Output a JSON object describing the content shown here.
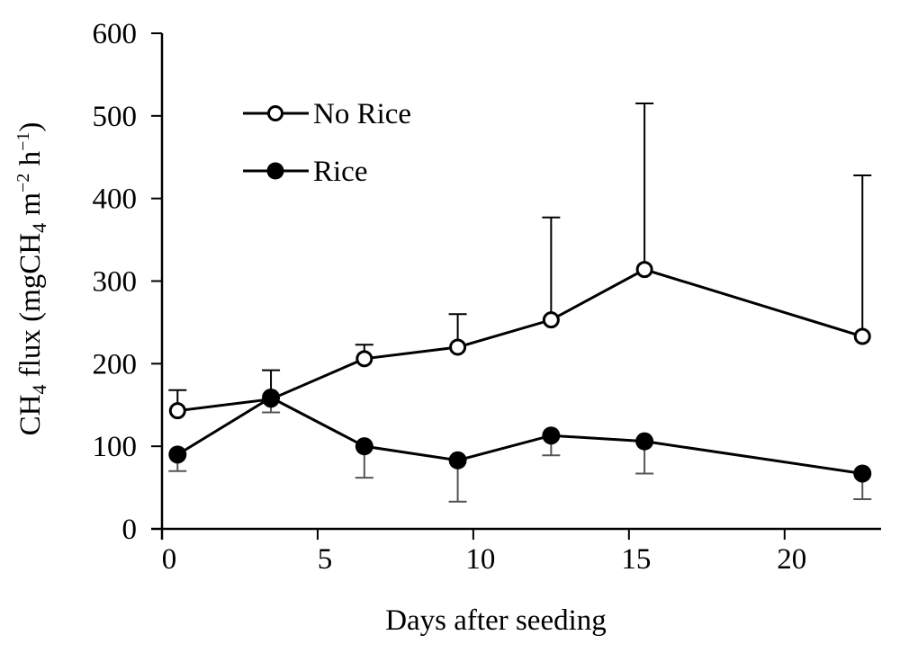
{
  "chart_data": {
    "type": "line",
    "title": "",
    "xlabel": "Days after seeding",
    "ylabel": {
      "prefix": "CH",
      "sub1": "4",
      "middle": " flux (mgCH",
      "sub2": "4",
      "unit_m": " m",
      "sup_m": "−2",
      "unit_h": " h",
      "sup_h": "−1",
      "suffix": ")"
    },
    "xlim": [
      0,
      23.1
    ],
    "ylim": [
      0,
      600
    ],
    "x_ticks": [
      0,
      5,
      10,
      15,
      20
    ],
    "x_tick_labels": [
      "0",
      "5",
      "10",
      "15",
      "20"
    ],
    "y_ticks": [
      0,
      100,
      200,
      300,
      400,
      500,
      600
    ],
    "y_tick_labels": [
      "0",
      "100",
      "200",
      "300",
      "400",
      "500",
      "600"
    ],
    "grid": false,
    "legend_position": "top-left",
    "x": [
      0.5,
      3.5,
      6.5,
      9.5,
      12.5,
      15.5,
      22.5
    ],
    "series": [
      {
        "name": "No Rice",
        "marker": "open-circle",
        "values": [
          143,
          157,
          206,
          220,
          253,
          314,
          233
        ],
        "error_upper": [
          168,
          192,
          223,
          260,
          377,
          515,
          428
        ]
      },
      {
        "name": "Rice",
        "marker": "filled-circle",
        "values": [
          90,
          159,
          100,
          83,
          113,
          106,
          67
        ],
        "error_lower": [
          70,
          141,
          62,
          33,
          89,
          67,
          36
        ]
      }
    ],
    "colors": {
      "line": "#000000",
      "rice_error": "#555555",
      "background": "#ffffff"
    }
  }
}
